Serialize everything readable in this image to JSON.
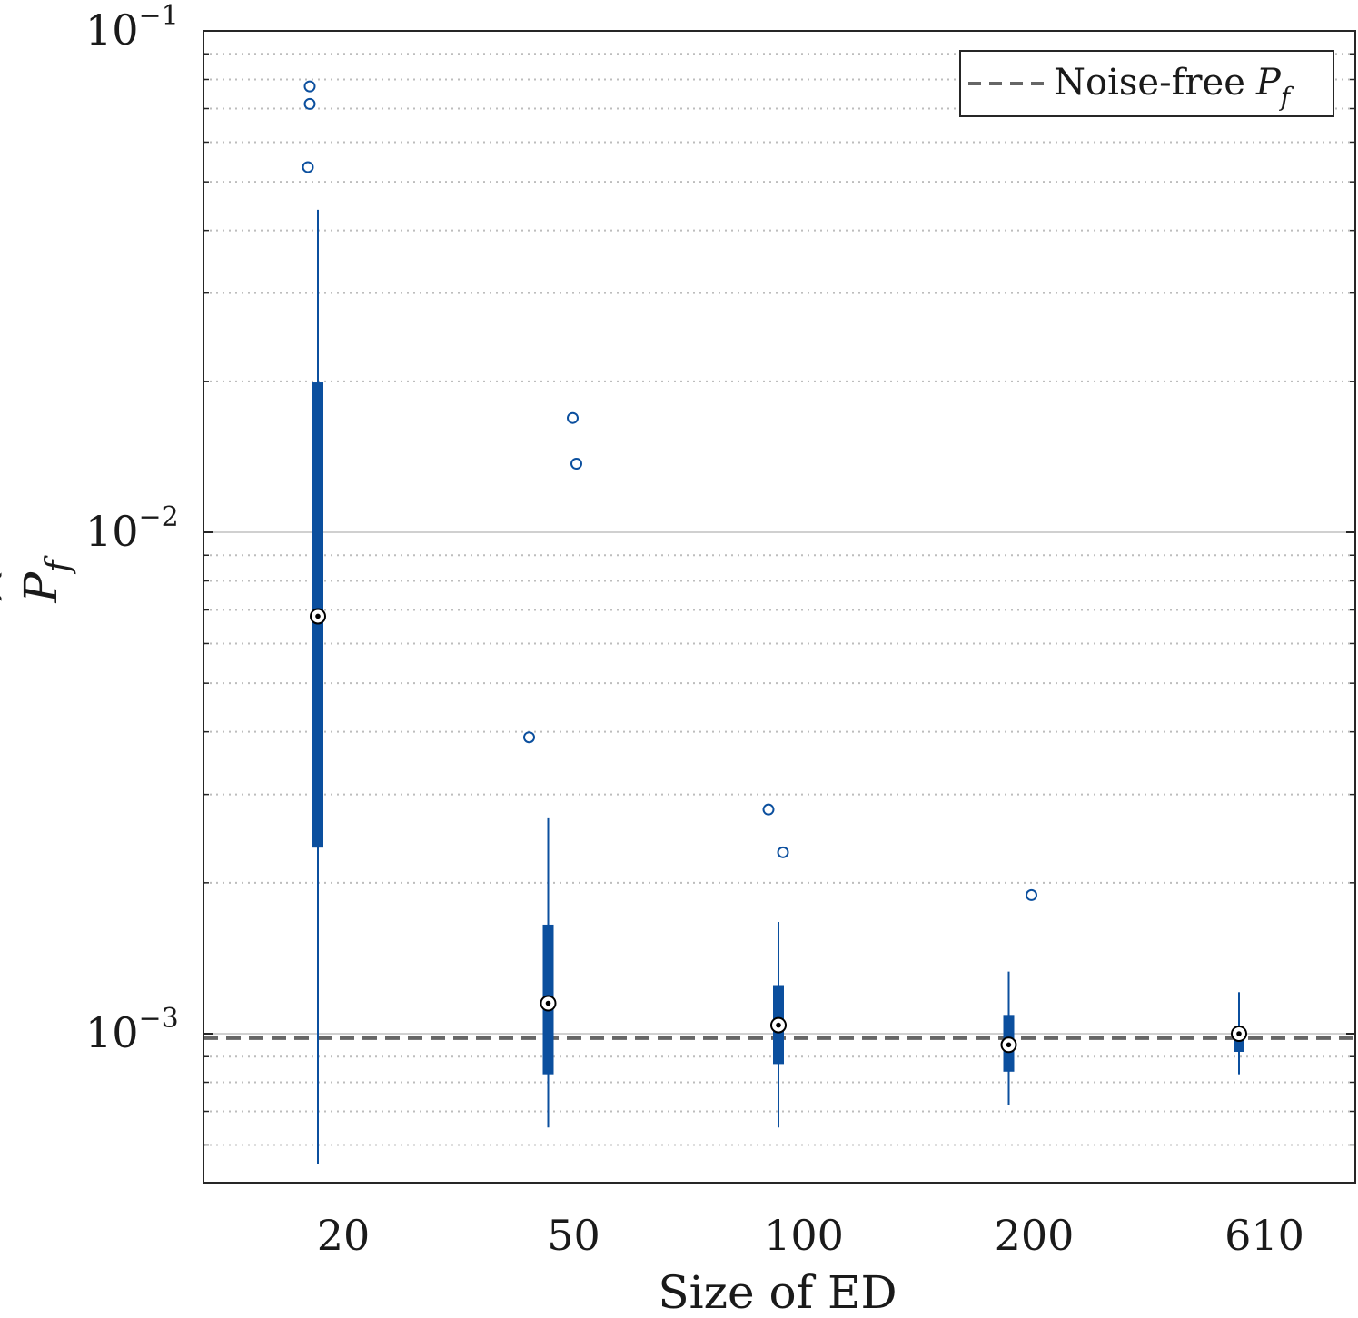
{
  "chart_data": {
    "type": "boxplot",
    "xlabel": "Size of ED",
    "ylabel": "P_f (hat)",
    "ylabel_base": "P",
    "ylabel_sub": "f",
    "yscale": "log",
    "ylim": [
      0.00055,
      0.1
    ],
    "y_major_ticks": [
      {
        "value": 0.001,
        "base": "10",
        "exp": "−3"
      },
      {
        "value": 0.01,
        "base": "10",
        "exp": "−2"
      },
      {
        "value": 0.1,
        "base": "10",
        "exp": "−1"
      }
    ],
    "categories": [
      "20",
      "50",
      "100",
      "200",
      "610"
    ],
    "boxes": [
      {
        "label": "20",
        "whisker_low": 0.00055,
        "q1": 0.00235,
        "median": 0.0068,
        "q3": 0.0199,
        "whisker_high": 0.044,
        "outliers": [
          {
            "value": 0.0775,
            "offset": -9
          },
          {
            "value": 0.0715,
            "offset": -9
          },
          {
            "value": 0.0535,
            "offset": -11
          }
        ]
      },
      {
        "label": "50",
        "whisker_low": 0.00065,
        "q1": 0.00083,
        "median": 0.00115,
        "q3": 0.00165,
        "whisker_high": 0.0027,
        "outliers": [
          {
            "value": 0.0169,
            "offset": 27
          },
          {
            "value": 0.0137,
            "offset": 31
          },
          {
            "value": 0.0039,
            "offset": -21
          }
        ]
      },
      {
        "label": "100",
        "whisker_low": 0.00065,
        "q1": 0.00087,
        "median": 0.00104,
        "q3": 0.00125,
        "whisker_high": 0.00167,
        "outliers": [
          {
            "value": 0.0028,
            "offset": -11
          },
          {
            "value": 0.0023,
            "offset": 5
          }
        ]
      },
      {
        "label": "200",
        "whisker_low": 0.00072,
        "q1": 0.00084,
        "median": 0.00095,
        "q3": 0.00109,
        "whisker_high": 0.00133,
        "outliers": [
          {
            "value": 0.00189,
            "offset": 25
          }
        ]
      },
      {
        "label": "610",
        "whisker_low": 0.00083,
        "q1": 0.00092,
        "median": 0.001,
        "q3": 0.00103,
        "whisker_high": 0.00121,
        "outliers": []
      }
    ],
    "reference_line": {
      "value": 0.00098,
      "legend": "Noise-free",
      "symbol_base": "P",
      "symbol_sub": "f"
    },
    "colors": {
      "box": "#0b4f9e",
      "reference": "#666666",
      "grid": "#c8c8c8",
      "axis": "#262626"
    },
    "grid": true,
    "legend_position": "top-right"
  }
}
